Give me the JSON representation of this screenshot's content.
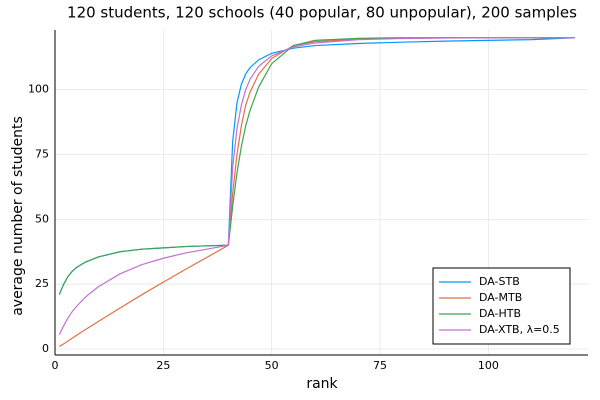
{
  "chart_data": {
    "type": "line",
    "title": "120 students, 120 schools (40 popular, 80 unpopular), 200 samples",
    "x_label": "rank",
    "y_label": "average number of students",
    "x": [
      1,
      2,
      3,
      4,
      5,
      7,
      10,
      15,
      20,
      25,
      30,
      35,
      40,
      41,
      42,
      43,
      44,
      45,
      47,
      50,
      55,
      60,
      70,
      80,
      90,
      100,
      110,
      120
    ],
    "series": [
      {
        "name": "DA-STB",
        "color": "#009af9",
        "values": [
          21,
          25,
          28,
          30,
          31.5,
          33.5,
          35.5,
          37.5,
          38.5,
          39,
          39.5,
          39.8,
          40,
          80,
          95,
          102,
          106,
          108.5,
          111.5,
          114,
          116,
          117,
          117.8,
          118.3,
          118.7,
          119,
          119.3,
          120
        ]
      },
      {
        "name": "DA-MTB",
        "color": "#e26f46",
        "values": [
          1,
          2,
          3.1,
          4.2,
          5.3,
          7.5,
          10.6,
          15.8,
          20.9,
          25.8,
          30.6,
          35.3,
          40,
          60,
          75,
          86,
          94,
          99,
          106,
          112,
          117,
          118.5,
          119.5,
          119.8,
          120,
          120,
          120,
          120
        ]
      },
      {
        "name": "DA-HTB",
        "color": "#3da44d",
        "values": [
          21,
          25,
          28,
          30,
          31.5,
          33.5,
          35.5,
          37.5,
          38.5,
          39,
          39.5,
          39.8,
          40,
          55,
          68,
          78,
          86,
          92,
          101,
          110,
          117,
          119,
          119.8,
          120,
          120,
          120,
          120,
          120
        ]
      },
      {
        "name": "DA-XTB, λ=0.5",
        "color": "#c271d2",
        "values": [
          5.5,
          9,
          12,
          14.5,
          16.5,
          20,
          24,
          29,
          32.5,
          35,
          37,
          38.5,
          40,
          70,
          85,
          94,
          100,
          104,
          109,
          113,
          116.5,
          118,
          119.3,
          119.7,
          119.9,
          120,
          120,
          120
        ]
      }
    ],
    "xlim": [
      0,
      123
    ],
    "ylim": [
      -2.3,
      123
    ],
    "xticks": [
      0,
      25,
      50,
      75,
      100
    ],
    "yticks": [
      0,
      25,
      50,
      75,
      100
    ],
    "grid": true,
    "legend": "bottom-right"
  }
}
